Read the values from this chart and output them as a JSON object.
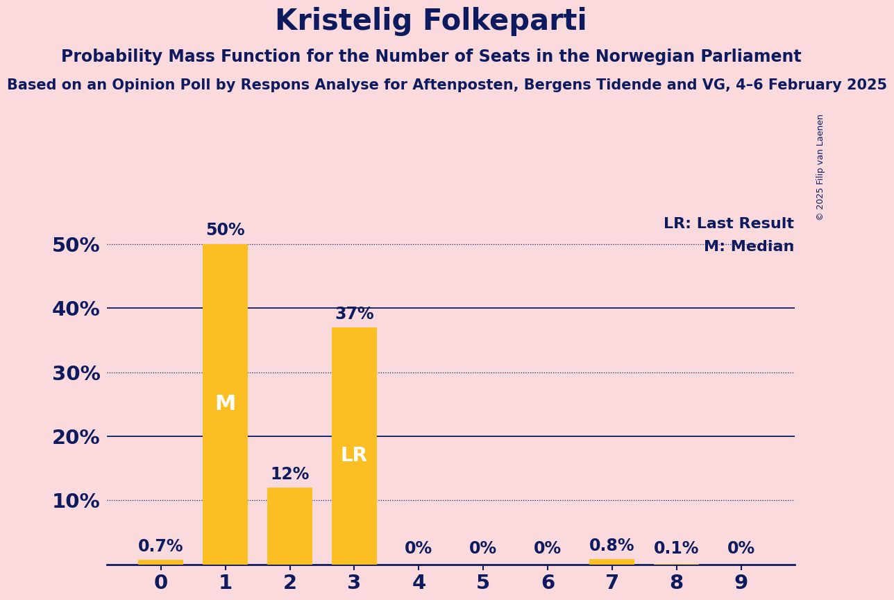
{
  "title": "Kristelig Folkeparti",
  "subtitle1": "Probability Mass Function for the Number of Seats in the Norwegian Parliament",
  "subtitle2": "Based on an Opinion Poll by Respons Analyse for Aftenposten, Bergens Tidende and VG, 4–6 February 2025",
  "copyright": "© 2025 Filip van Laenen",
  "categories": [
    0,
    1,
    2,
    3,
    4,
    5,
    6,
    7,
    8,
    9
  ],
  "values": [
    0.7,
    50.0,
    12.0,
    37.0,
    0.0,
    0.0,
    0.0,
    0.8,
    0.1,
    0.0
  ],
  "bar_color": "#FBBF24",
  "background_color": "#FADADD",
  "text_color": "#0D1B5E",
  "label_texts": [
    "0.7%",
    "50%",
    "12%",
    "37%",
    "0%",
    "0%",
    "0%",
    "0.8%",
    "0.1%",
    "0%"
  ],
  "median_bar": 1,
  "lr_bar": 3,
  "median_label": "M",
  "lr_label": "LR",
  "legend_lr": "LR: Last Result",
  "legend_m": "M: Median",
  "ylim": [
    0,
    55
  ],
  "yticks": [
    0,
    10,
    20,
    30,
    40,
    50
  ],
  "grid_color": "#0D1B5E",
  "dotted_line_value": 50.0,
  "title_fontsize": 30,
  "subtitle1_fontsize": 17,
  "subtitle2_fontsize": 15,
  "bar_label_fontsize": 17,
  "tick_label_fontsize": 21,
  "legend_fontsize": 16,
  "inner_label_fontsize_M": 22,
  "inner_label_fontsize_LR": 20
}
